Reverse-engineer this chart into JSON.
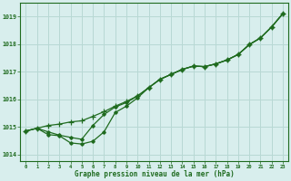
{
  "xlabel": "Graphe pression niveau de la mer (hPa)",
  "xlim": [
    -0.5,
    23.5
  ],
  "ylim": [
    1013.75,
    1019.5
  ],
  "yticks": [
    1014,
    1015,
    1016,
    1017,
    1018,
    1019
  ],
  "xticks": [
    0,
    1,
    2,
    3,
    4,
    5,
    6,
    7,
    8,
    9,
    10,
    11,
    12,
    13,
    14,
    15,
    16,
    17,
    18,
    19,
    20,
    21,
    22,
    23
  ],
  "bg_color": "#d8eeed",
  "grid_color": "#b8d8d4",
  "line_color": "#1f6b1f",
  "curve_smooth_x": [
    0,
    1,
    2,
    3,
    4,
    5,
    6,
    7,
    8,
    9,
    10,
    11,
    12,
    13,
    14,
    15,
    16,
    17,
    18,
    19,
    20,
    21,
    22,
    23
  ],
  "curve_smooth_y": [
    1014.85,
    1014.95,
    1015.05,
    1015.1,
    1015.18,
    1015.22,
    1015.38,
    1015.55,
    1015.75,
    1015.92,
    1016.12,
    1016.42,
    1016.72,
    1016.9,
    1017.08,
    1017.2,
    1017.18,
    1017.28,
    1017.42,
    1017.62,
    1017.98,
    1018.22,
    1018.62,
    1019.1
  ],
  "curve_mid_x": [
    0,
    1,
    2,
    3,
    4,
    5,
    6,
    7,
    8,
    9,
    10,
    11,
    12,
    13,
    14,
    15,
    16,
    17,
    18,
    19,
    20,
    21,
    22,
    23
  ],
  "curve_mid_y": [
    1014.85,
    1014.95,
    1014.82,
    1014.7,
    1014.62,
    1014.55,
    1015.05,
    1015.45,
    1015.72,
    1015.88,
    1016.12,
    1016.42,
    1016.72,
    1016.9,
    1017.08,
    1017.2,
    1017.18,
    1017.28,
    1017.42,
    1017.62,
    1017.98,
    1018.22,
    1018.62,
    1019.1
  ],
  "curve_dip_x": [
    0,
    1,
    2,
    3,
    4,
    5,
    6,
    7,
    8,
    9,
    10,
    11,
    12,
    13,
    14,
    15,
    16,
    17,
    18,
    19,
    20,
    21,
    22,
    23
  ],
  "curve_dip_y": [
    1014.85,
    1014.95,
    1014.72,
    1014.68,
    1014.42,
    1014.38,
    1014.48,
    1014.82,
    1015.52,
    1015.75,
    1016.05,
    1016.42,
    1016.72,
    1016.9,
    1017.08,
    1017.2,
    1017.18,
    1017.28,
    1017.42,
    1017.62,
    1017.98,
    1018.22,
    1018.62,
    1019.1
  ]
}
